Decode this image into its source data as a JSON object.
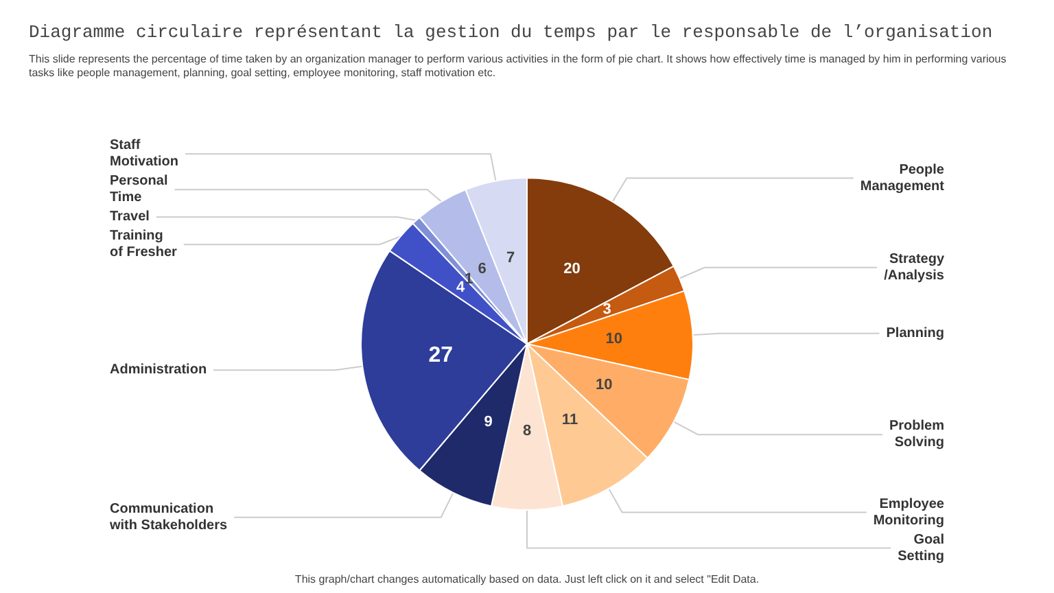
{
  "chart_data": {
    "type": "pie",
    "title": "Diagramme circulaire représentant la gestion du temps par le responsable de l’organisation",
    "subtitle": "This slide represents the percentage of time taken by an organization manager to perform various activities in the form of pie chart. It shows how effectively time is managed by him in performing various tasks like people management, planning, goal setting, employee monitoring, staff motivation etc.",
    "categories": [
      "People Management",
      "Strategy /Analysis",
      "Planning",
      "Problem Solving",
      "Employee Monitoring",
      "Goal Setting",
      "Communication with Stakeholders",
      "Administration",
      "Training of Fresher",
      "Travel",
      "Personal Time",
      "Staff Motivation"
    ],
    "values": [
      20,
      3,
      10,
      10,
      11,
      8,
      9,
      27,
      4,
      1,
      6,
      7
    ],
    "colors": [
      "#843c0c",
      "#c55a11",
      "#ff7f0e",
      "#ffad66",
      "#ffc993",
      "#fde4d2",
      "#1f2a6b",
      "#2e3d9a",
      "#4051c8",
      "#8090d8",
      "#b4bde9",
      "#d6dbf3"
    ],
    "data_labels": true,
    "legend": false,
    "annotations": [
      "This graph/chart changes automatically based on data. Just left click on it and select \"Edit Data."
    ]
  }
}
